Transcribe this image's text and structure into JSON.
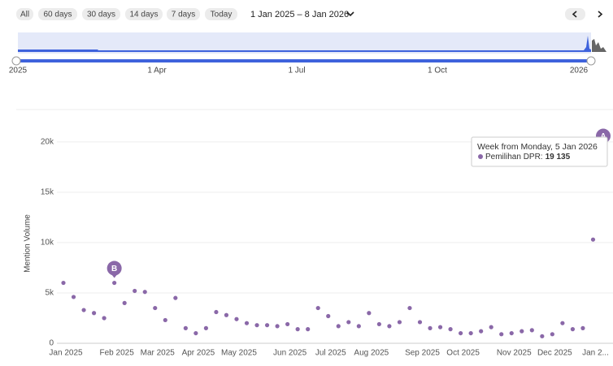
{
  "toolbar": {
    "ranges": [
      "All",
      "60 days",
      "30 days",
      "14 days",
      "7 days",
      "Today"
    ],
    "date_range": "1 Jan 2025 – 8 Jan 2026"
  },
  "navigator": {
    "labels": [
      "2025",
      "1 Apr",
      "1 Jul",
      "1 Oct",
      "2026"
    ]
  },
  "chart_data": {
    "type": "line",
    "y_label": "Mention Volume",
    "categories": [
      "Jan 2025",
      null,
      null,
      null,
      null,
      "Feb 2025",
      null,
      null,
      null,
      "Mar 2025",
      null,
      null,
      null,
      "Apr 2025",
      null,
      null,
      null,
      "May 2025",
      null,
      null,
      null,
      null,
      "Jun 2025",
      null,
      null,
      null,
      "Jul 2025",
      null,
      null,
      null,
      "Aug 2025",
      null,
      null,
      null,
      null,
      "Sep 2025",
      null,
      null,
      null,
      "Oct 2025",
      null,
      null,
      null,
      null,
      "Nov 2025",
      null,
      null,
      null,
      "Dec 2025",
      null,
      null,
      null,
      "Jan 2...",
      null
    ],
    "series": [
      {
        "name": "Pemilihan DPR",
        "color": "#8a68a8",
        "values": [
          6000,
          4600,
          3300,
          3000,
          2500,
          6000,
          4000,
          5200,
          5100,
          3500,
          2300,
          4500,
          1500,
          1000,
          1500,
          3100,
          2800,
          2400,
          2000,
          1800,
          1800,
          1700,
          1900,
          1400,
          1400,
          3500,
          2700,
          1700,
          2100,
          1700,
          3000,
          1900,
          1700,
          2100,
          3500,
          2100,
          1500,
          1600,
          1400,
          1000,
          1000,
          1200,
          1600,
          900,
          1000,
          1200,
          1300,
          700,
          900,
          2000,
          1400,
          1500,
          10300,
          19135
        ]
      }
    ],
    "ylim": [
      0,
      22000
    ],
    "yticks": [
      0,
      {
        "value": 5000,
        "label": "5k"
      },
      {
        "value": 10000,
        "label": "10k"
      },
      {
        "value": 15000,
        "label": "15k"
      },
      {
        "value": 20000,
        "label": "20k"
      }
    ],
    "grid": true,
    "annotations": [
      {
        "label": "B",
        "index": 5
      },
      {
        "label": "A",
        "index": 53
      }
    ],
    "tooltip": {
      "title": "Week from Monday, 5 Jan 2026",
      "series_label": "Pemilihan DPR:",
      "value_label": "19 135",
      "index": 53
    }
  }
}
